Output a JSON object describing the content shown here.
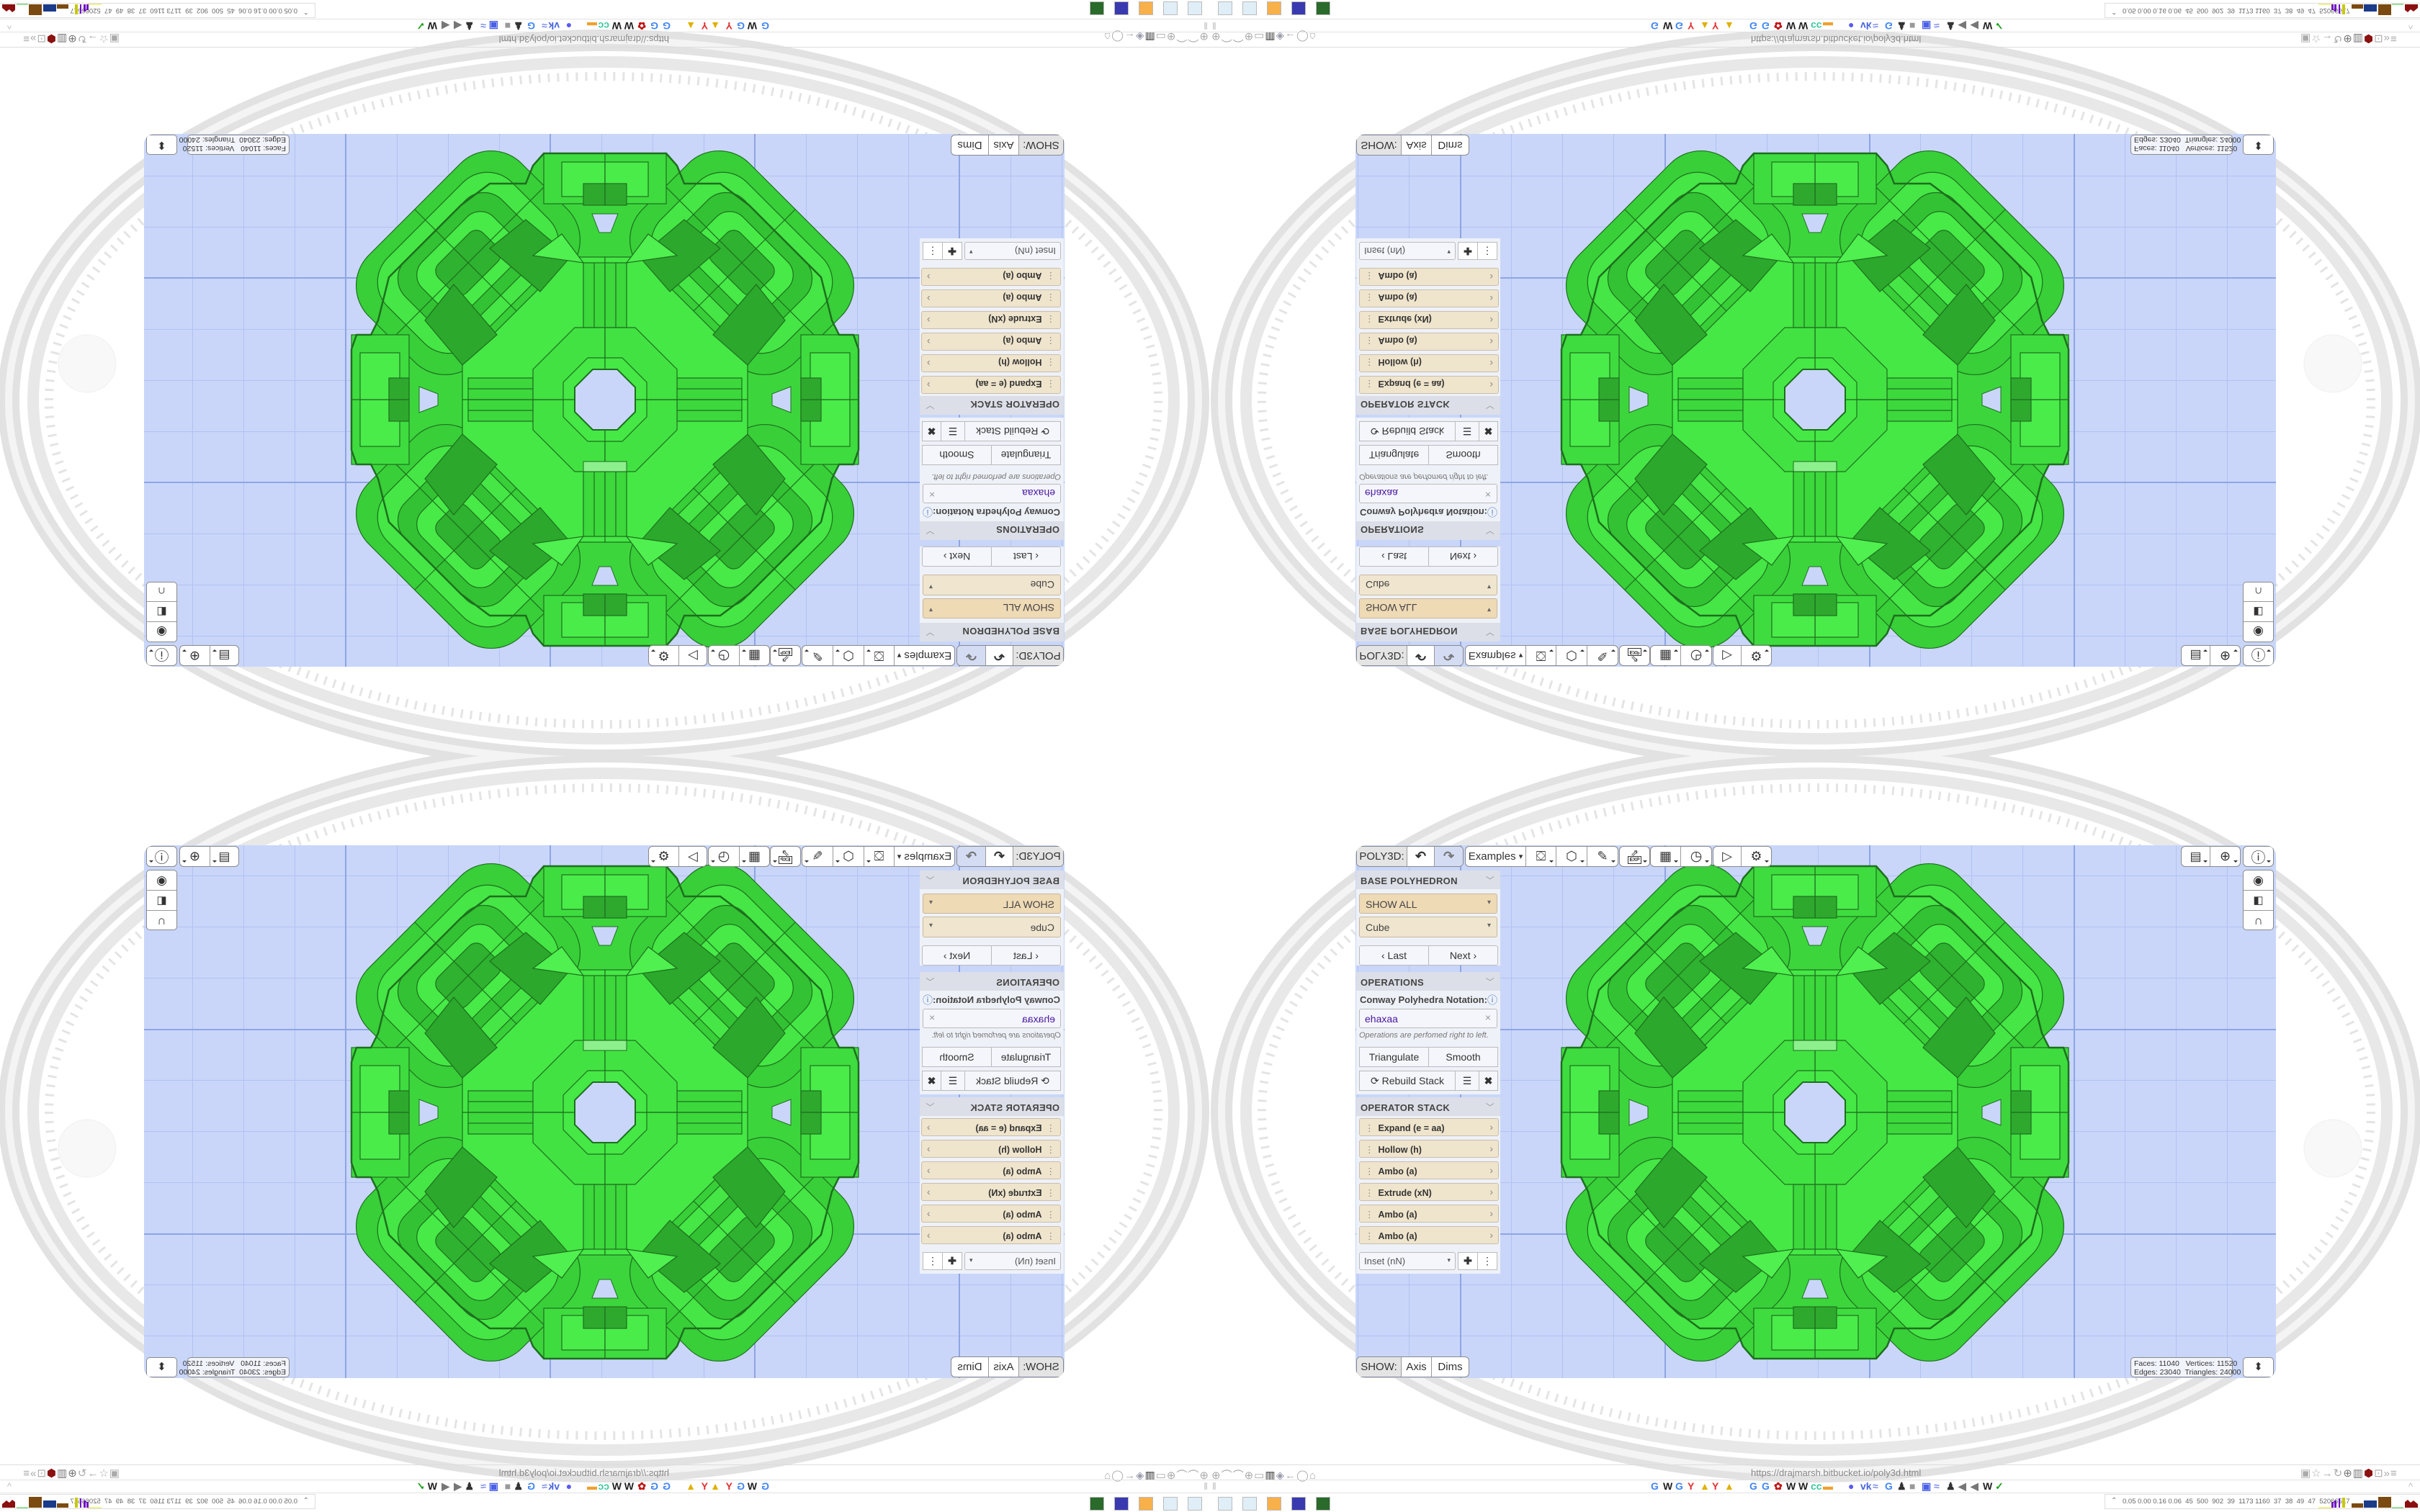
{
  "toolbar": {
    "app_label": "POLY3D:",
    "undo_icon": "undo-icon",
    "redo_icon": "redo-icon",
    "examples_label": "Examples",
    "examples_caret": "▾",
    "exp_label": "EXP",
    "tools": [
      "paint-bucket-icon",
      "cube-icon",
      "pencil-ruler-icon",
      "export-icon",
      "calendar-icon",
      "clock-icon",
      "play-icon",
      "gear-icon"
    ]
  },
  "top_right": {
    "icons": [
      "calendar-clock-icon",
      "globe-icon",
      "info-icon"
    ],
    "side_tools": [
      "eye-icon",
      "toggle-icon",
      "magnet-icon"
    ]
  },
  "sidebar": {
    "base": {
      "title": "BASE POLYHEDRON",
      "filter": "SHOW ALL",
      "shape": "Cube",
      "last": "Last",
      "next": "Next"
    },
    "operations": {
      "title": "OPERATIONS",
      "notation_label": "Conway Polyhedra Notation:",
      "notation_value": "ehaxaa",
      "hint": "Operations are perfomed right to left.",
      "triangulate": "Triangulate",
      "smooth": "Smooth",
      "rebuild": "Rebuild Stack"
    },
    "stack": {
      "title": "OPERATOR STACK",
      "items": [
        "Expand (e = aa)",
        "Hollow (h)",
        "Ambo (a)",
        "Extrude (xN)",
        "Ambo (a)",
        "Ambo (a)"
      ],
      "add_select": "Inset (nN)"
    }
  },
  "show": {
    "label": "SHOW:",
    "axis": "Axis",
    "dims": "Dims"
  },
  "stats": {
    "faces_label": "Faces:",
    "faces": "11040",
    "vertices_label": "Vertices:",
    "vertices": "11520",
    "edges_label": "Edges:",
    "edges": "23040",
    "triangles_label": "Triangles:",
    "triangles": "24000"
  },
  "colors": {
    "viewport": "#c9d6fa",
    "mesh": "#3fdc3f",
    "mesh_edge": "#1e6f1e",
    "stack_item": "#efe4cc",
    "filter_select": "#efdab6",
    "notation_text": "#4a16a0"
  },
  "browser": {
    "url": "https://drajmarsh.bitbucket.io/poly3d.html",
    "status_numbers": "0.05 0.00 0.16 0.06  45  500  902  39  1173 1160  37  38  49  47  52066517",
    "bookmarks": [
      "google",
      "wikipedia",
      "google",
      "yandex",
      "image",
      "yandex",
      "image",
      "google",
      "google",
      "flower",
      "wikipedia",
      "wikipedia",
      "cc",
      "cloud",
      "messenger",
      "vk",
      "network",
      "google",
      "person",
      "device",
      "box",
      "network",
      "person",
      "fish",
      "fish",
      "wikipedia",
      "chart"
    ],
    "taskbar": [
      "notepad",
      "notepad",
      "firefox",
      "floppy",
      "device"
    ]
  }
}
